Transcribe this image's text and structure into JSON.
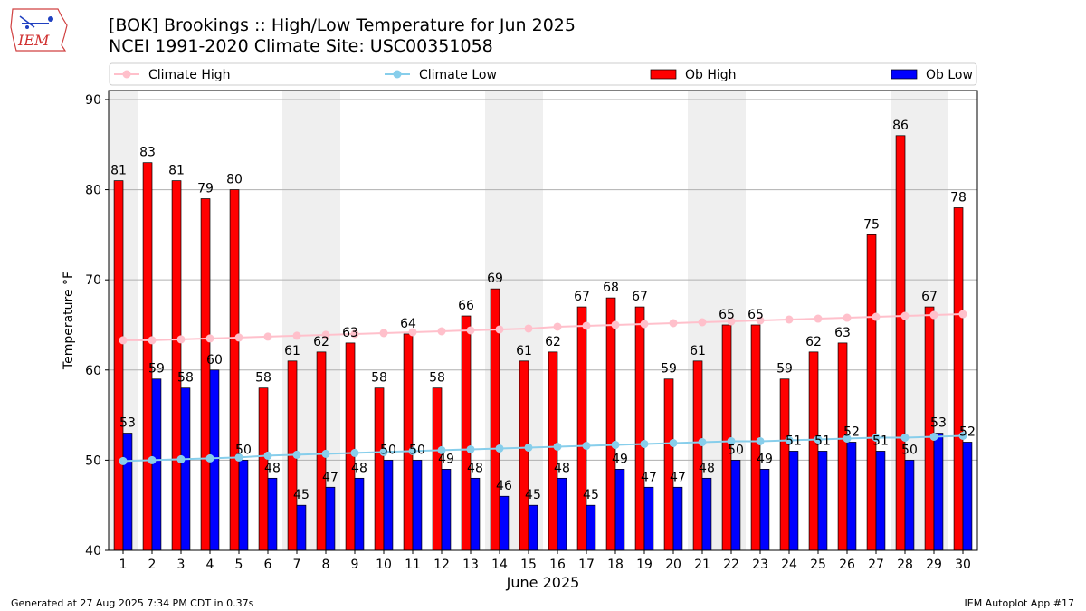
{
  "title_line1": "[BOK] Brookings :: High/Low Temperature for Jun 2025",
  "title_line2": "NCEI 1991-2020 Climate Site: USC00351058",
  "logo_text": "IEM",
  "footer_left": "Generated at 27 Aug 2025 7:34 PM CDT in 0.37s",
  "footer_right": "IEM Autoplot App #17",
  "colors": {
    "ob_high": "#ff0000",
    "ob_low": "#0000ff",
    "climate_high": "#ffc0cb",
    "climate_low": "#87ceeb",
    "weekend_band": "#efefef",
    "grid": "#b0b0b0"
  },
  "chart_data": {
    "type": "bar",
    "xlabel": "June 2025",
    "ylabel": "Temperature °F",
    "ylim": [
      40,
      91
    ],
    "yticks": [
      40,
      50,
      60,
      70,
      80,
      90
    ],
    "grid": "horizontal",
    "legend_position": "top",
    "categories": [
      "1",
      "2",
      "3",
      "4",
      "5",
      "6",
      "7",
      "8",
      "9",
      "10",
      "11",
      "12",
      "13",
      "14",
      "15",
      "16",
      "17",
      "18",
      "19",
      "20",
      "21",
      "22",
      "23",
      "24",
      "25",
      "26",
      "27",
      "28",
      "29",
      "30"
    ],
    "shaded_days": [
      1,
      7,
      8,
      14,
      15,
      21,
      22,
      28,
      29
    ],
    "series": [
      {
        "name": "Climate High",
        "kind": "line",
        "values": [
          63.3,
          63.3,
          63.4,
          63.5,
          63.6,
          63.7,
          63.8,
          63.9,
          64.0,
          64.1,
          64.2,
          64.3,
          64.4,
          64.5,
          64.6,
          64.8,
          64.9,
          65.0,
          65.1,
          65.2,
          65.3,
          65.4,
          65.5,
          65.6,
          65.7,
          65.8,
          65.9,
          66.0,
          66.1,
          66.2
        ]
      },
      {
        "name": "Climate Low",
        "kind": "line",
        "values": [
          49.9,
          50.0,
          50.1,
          50.2,
          50.3,
          50.5,
          50.6,
          50.7,
          50.8,
          50.9,
          51.0,
          51.1,
          51.2,
          51.3,
          51.4,
          51.5,
          51.6,
          51.7,
          51.8,
          51.9,
          52.0,
          52.1,
          52.1,
          52.2,
          52.3,
          52.4,
          52.5,
          52.5,
          52.6,
          52.7
        ]
      },
      {
        "name": "Ob High",
        "kind": "bar",
        "values": [
          81,
          83,
          81,
          79,
          80,
          58,
          61,
          62,
          63,
          58,
          64,
          58,
          66,
          69,
          61,
          62,
          67,
          68,
          67,
          59,
          61,
          65,
          65,
          59,
          62,
          63,
          75,
          86,
          67,
          78
        ]
      },
      {
        "name": "Ob Low",
        "kind": "bar",
        "values": [
          53,
          59,
          58,
          60,
          50,
          48,
          45,
          47,
          48,
          50,
          50,
          49,
          48,
          46,
          45,
          48,
          45,
          49,
          47,
          47,
          48,
          50,
          49,
          51,
          51,
          52,
          51,
          50,
          53,
          52
        ]
      }
    ]
  }
}
